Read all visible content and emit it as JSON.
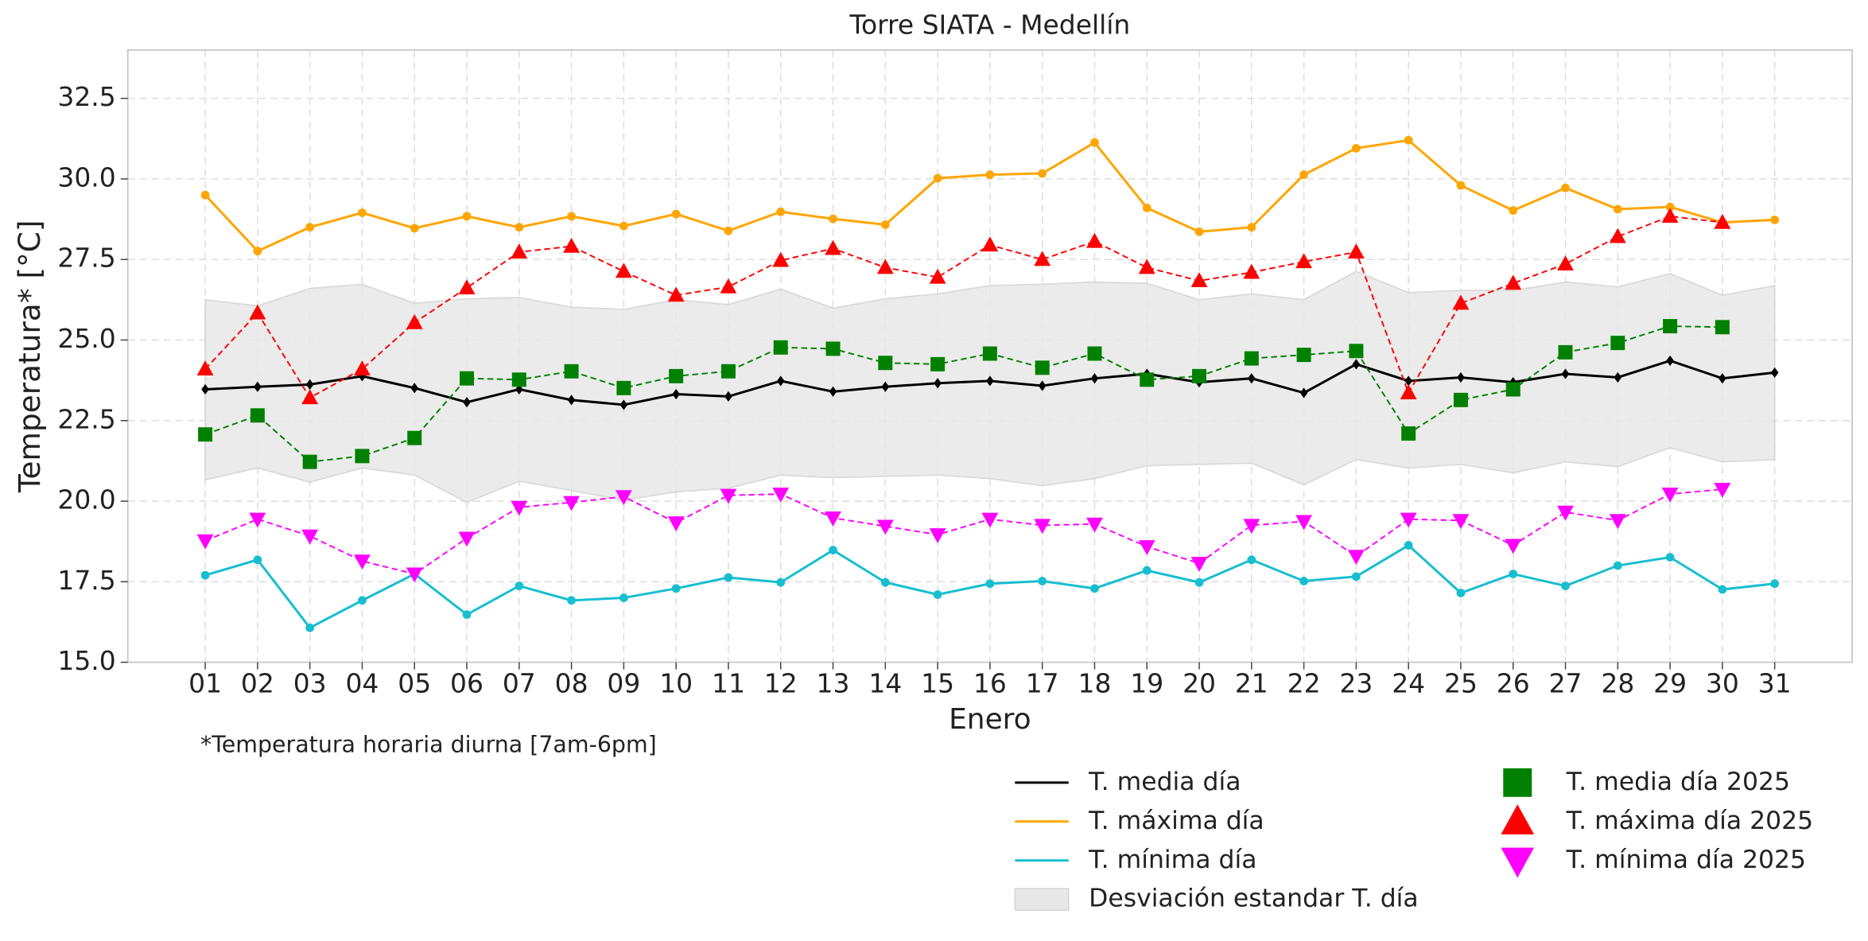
{
  "chart_data": {
    "type": "line",
    "title": "Torre SIATA - Medellín",
    "x_label": "Enero",
    "y_label": "Temperatura* [°C]",
    "annotation": "*Temperatura horaria diurna [7am-6pm]",
    "categories": [
      "01",
      "02",
      "03",
      "04",
      "05",
      "06",
      "07",
      "08",
      "09",
      "10",
      "11",
      "12",
      "13",
      "14",
      "15",
      "16",
      "17",
      "18",
      "19",
      "20",
      "21",
      "22",
      "23",
      "24",
      "25",
      "26",
      "27",
      "28",
      "29",
      "30",
      "31"
    ],
    "ylim": [
      15,
      34
    ],
    "yticks": [
      {
        "value": 15,
        "label": "15.0"
      },
      17.5,
      {
        "value": 20,
        "label": "20.0"
      },
      22.5,
      {
        "value": 25,
        "label": "25.0"
      },
      27.5,
      {
        "value": 30,
        "label": "30.0"
      },
      32.5
    ],
    "grid": true,
    "band": {
      "name": "Desviación estandar T. día",
      "color": "#e8e8e8",
      "upper": [
        26.25,
        26.06,
        26.6,
        26.73,
        26.14,
        26.28,
        26.32,
        26.02,
        25.95,
        26.25,
        26.1,
        26.58,
        25.99,
        26.28,
        26.43,
        26.69,
        26.73,
        26.8,
        26.76,
        26.25,
        26.43,
        26.25,
        27.13,
        26.47,
        26.54,
        26.54,
        26.8,
        26.65,
        27.06,
        26.39,
        26.69
      ],
      "lower": [
        20.66,
        21.03,
        20.59,
        21.03,
        20.81,
        19.96,
        20.62,
        20.33,
        20.03,
        20.29,
        20.4,
        20.81,
        20.73,
        20.77,
        20.81,
        20.7,
        20.48,
        20.7,
        21.1,
        21.14,
        21.18,
        20.51,
        21.29,
        21.03,
        21.14,
        20.88,
        21.22,
        21.07,
        21.66,
        21.22,
        21.29
      ]
    },
    "series": [
      {
        "name": "T. media día",
        "color": "#000000",
        "marker": "diamond",
        "dashed": false,
        "values": [
          23.47,
          23.55,
          23.62,
          23.88,
          23.51,
          23.07,
          23.47,
          23.14,
          22.99,
          23.32,
          23.25,
          23.73,
          23.4,
          23.55,
          23.66,
          23.73,
          23.58,
          23.81,
          23.95,
          23.69,
          23.81,
          23.36,
          24.25,
          23.73,
          23.84,
          23.69,
          23.95,
          23.84,
          24.36,
          23.81,
          23.99
        ]
      },
      {
        "name": "T. máxima día",
        "color": "#ffa500",
        "marker": "circle",
        "dashed": false,
        "values": [
          29.5,
          27.76,
          28.5,
          28.95,
          28.47,
          28.84,
          28.5,
          28.84,
          28.54,
          28.91,
          28.39,
          28.98,
          28.76,
          28.58,
          30.02,
          30.13,
          30.17,
          31.13,
          29.1,
          28.36,
          28.5,
          30.13,
          30.95,
          31.2,
          29.8,
          29.02,
          29.72,
          29.06,
          29.13,
          28.65,
          28.73
        ]
      },
      {
        "name": "T. mínima día",
        "color": "#17becf",
        "marker": "circle",
        "dashed": false,
        "values": [
          17.7,
          18.18,
          16.07,
          16.92,
          17.74,
          16.48,
          17.37,
          16.92,
          17.0,
          17.29,
          17.63,
          17.48,
          18.48,
          17.48,
          17.1,
          17.44,
          17.52,
          17.29,
          17.85,
          17.48,
          18.18,
          17.52,
          17.66,
          18.63,
          17.15,
          17.74,
          17.37,
          18.0,
          18.26,
          17.26,
          17.44
        ]
      },
      {
        "name": "T. media día 2025",
        "color": "#008000",
        "marker": "square",
        "dashed": true,
        "values": [
          22.07,
          22.66,
          21.22,
          21.4,
          21.96,
          23.81,
          23.77,
          24.03,
          23.51,
          23.88,
          24.03,
          24.77,
          24.73,
          24.29,
          24.25,
          24.58,
          24.14,
          24.58,
          23.77,
          23.88,
          24.43,
          24.54,
          24.66,
          22.1,
          23.14,
          23.47,
          24.62,
          24.91,
          25.43,
          25.4,
          null
        ]
      },
      {
        "name": "T. máxima día 2025",
        "color": "#ff0000",
        "marker": "triangle-up",
        "dashed": true,
        "values": [
          24.1,
          25.84,
          23.21,
          24.1,
          25.54,
          26.62,
          27.73,
          27.91,
          27.13,
          26.39,
          26.65,
          27.47,
          27.84,
          27.25,
          26.95,
          27.95,
          27.5,
          28.06,
          27.25,
          26.84,
          27.1,
          27.43,
          27.73,
          23.36,
          26.14,
          26.76,
          27.36,
          28.21,
          28.84,
          28.65,
          null
        ]
      },
      {
        "name": "T. mínima día 2025",
        "color": "#ff00ff",
        "marker": "triangle-down",
        "dashed": true,
        "values": [
          18.77,
          19.44,
          18.92,
          18.14,
          17.74,
          18.85,
          19.81,
          19.96,
          20.14,
          19.33,
          20.18,
          20.22,
          19.48,
          19.22,
          18.96,
          19.44,
          19.25,
          19.29,
          18.59,
          18.07,
          19.25,
          19.37,
          18.29,
          19.44,
          19.4,
          18.63,
          19.66,
          19.4,
          20.22,
          20.37,
          null
        ]
      }
    ]
  }
}
